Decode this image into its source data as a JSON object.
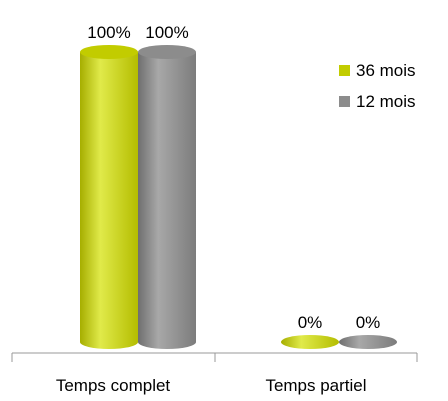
{
  "chart_data": {
    "type": "bar",
    "categories": [
      "Temps complet",
      "Temps partiel"
    ],
    "series": [
      {
        "name": "36 mois",
        "values": [
          100,
          0
        ],
        "labels": [
          "100%",
          "0%"
        ],
        "color": "#c2cc00"
      },
      {
        "name": "12 mois",
        "values": [
          100,
          0
        ],
        "labels": [
          "100%",
          "0%"
        ],
        "color": "#8c8c8c"
      }
    ],
    "ylim": [
      0,
      100
    ],
    "legend": "right",
    "grid": false,
    "style": "3d-cylinder"
  }
}
